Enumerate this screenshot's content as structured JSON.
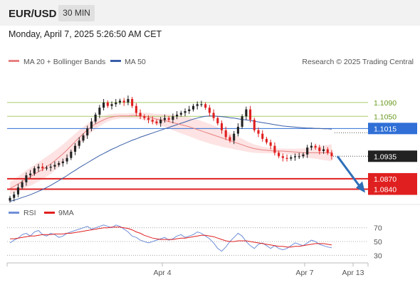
{
  "header": {
    "symbol": "EUR/USD",
    "timeframe": "30 MIN",
    "datetime": "Monday, April 7, 2025 5:26:50 AM CET"
  },
  "legend": {
    "ma20": "MA 20 + Bollinger Bands",
    "ma50": "MA 50",
    "credit": "Research © 2025 Trading Central",
    "rsi": "RSI",
    "rsi_ma": "9MA"
  },
  "colors": {
    "ma20": "#e88080",
    "ma50": "#3a5fa8",
    "band_fill": "#fcd9d9",
    "bull": "#222222",
    "bear": "#e02020",
    "resistance": "#a8cc6a",
    "pivot": "#2f6fd6",
    "support": "#e02020",
    "rsi": "#6f8fd8",
    "arrow": "#2f6fb8"
  },
  "chart_data": [
    {
      "type": "candlestick",
      "title": "EUR/USD 30 MIN",
      "x_ticks": [
        "Apr 4",
        "Apr 7",
        "Apr 13"
      ],
      "price_levels": [
        {
          "label": "1.1090",
          "value": 1.109,
          "kind": "resistance"
        },
        {
          "label": "1.1050",
          "value": 1.105,
          "kind": "resistance"
        },
        {
          "label": "1.1015",
          "value": 1.1015,
          "kind": "pivot"
        },
        {
          "label": "1.0935",
          "value": 1.0935,
          "kind": "last_price"
        },
        {
          "label": "1.0870",
          "value": 1.087,
          "kind": "support"
        },
        {
          "label": "1.0840",
          "value": 1.084,
          "kind": "support"
        }
      ],
      "ylim": [
        1.08,
        1.118
      ],
      "close_series": [
        1.0815,
        1.0825,
        1.0845,
        1.086,
        1.088,
        1.0885,
        1.09,
        1.0905,
        1.09,
        1.0902,
        1.0905,
        1.091,
        1.0915,
        1.092,
        1.093,
        1.0948,
        1.0965,
        1.098,
        1.0995,
        1.1015,
        1.1035,
        1.1055,
        1.1075,
        1.109,
        1.108,
        1.1085,
        1.109,
        1.1095,
        1.109,
        1.11,
        1.108,
        1.106,
        1.105,
        1.1045,
        1.104,
        1.1035,
        1.103,
        1.104,
        1.1045,
        1.104,
        1.105,
        1.1055,
        1.106,
        1.1065,
        1.107,
        1.108,
        1.1085,
        1.1085,
        1.1075,
        1.106,
        1.1045,
        1.103,
        1.101,
        1.099,
        1.098,
        1.1,
        1.102,
        1.105,
        1.107,
        1.104,
        1.101,
        1.1,
        1.0985,
        1.0975,
        1.0965,
        1.0945,
        1.0935,
        1.093,
        1.0928,
        1.0932,
        1.0935,
        1.0935,
        1.094,
        1.096,
        1.0965,
        1.096,
        1.095,
        1.0955,
        1.0945,
        1.0935
      ],
      "ma20_series": [
        1.0842,
        1.0848,
        1.0855,
        1.0862,
        1.087,
        1.0876,
        1.0883,
        1.089,
        1.0897,
        1.0905,
        1.0913,
        1.0922,
        1.0932,
        1.0942,
        1.0953,
        1.0965,
        1.0977,
        1.0989,
        1.1,
        1.1011,
        1.102,
        1.1028,
        1.1034,
        1.104,
        1.1045,
        1.1048,
        1.105,
        1.1051,
        1.1051,
        1.1051,
        1.1052,
        1.1052,
        1.1051,
        1.105,
        1.1048,
        1.1045,
        1.1042,
        1.104,
        1.1038,
        1.1035,
        1.1032,
        1.1029,
        1.1026,
        1.1023,
        1.102,
        1.1016,
        1.1012,
        1.1008,
        1.1004,
        1.1,
        1.0996,
        1.0992,
        1.0988,
        1.0984,
        1.098,
        1.0976,
        1.0972,
        1.0968,
        1.0964,
        1.096,
        1.0957,
        1.0955,
        1.0953,
        1.0952,
        1.0951,
        1.095,
        1.095,
        1.095,
        1.0949,
        1.0948,
        1.0947,
        1.0946,
        1.0945,
        1.0945,
        1.0945,
        1.0945,
        1.0945,
        1.0945,
        1.0945,
        1.0945
      ],
      "ma50_series": [
        1.0805,
        1.0808,
        1.0812,
        1.0816,
        1.082,
        1.0824,
        1.0829,
        1.0834,
        1.0839,
        1.0845,
        1.0851,
        1.0858,
        1.0865,
        1.0872,
        1.0879,
        1.0887,
        1.0894,
        1.0902,
        1.0909,
        1.0916,
        1.0923,
        1.093,
        1.0937,
        1.0943,
        1.0949,
        1.0955,
        1.096,
        1.0966,
        1.0971,
        1.0976,
        1.0981,
        1.0985,
        1.099,
        1.0994,
        1.0998,
        1.1002,
        1.1006,
        1.101,
        1.1014,
        1.1018,
        1.1022,
        1.1026,
        1.103,
        1.1034,
        1.1038,
        1.1042,
        1.1045,
        1.1048,
        1.105,
        1.1051,
        1.1051,
        1.105,
        1.1049,
        1.1048,
        1.1046,
        1.1045,
        1.1043,
        1.1041,
        1.104,
        1.1038,
        1.1036,
        1.1034,
        1.1032,
        1.103,
        1.1028,
        1.1026,
        1.1024,
        1.1022,
        1.1021,
        1.102,
        1.1019,
        1.1018,
        1.1017,
        1.1016,
        1.1016,
        1.1015,
        1.1015,
        1.1014,
        1.1014,
        1.1013
      ],
      "band_width": 0.0018,
      "forecast": {
        "from": 1.0935,
        "to": 1.084
      }
    },
    {
      "type": "line",
      "title": "RSI",
      "y_ticks": [
        70,
        50,
        30
      ],
      "ylim": [
        20,
        80
      ],
      "series": [
        {
          "name": "RSI",
          "values": [
            48,
            52,
            55,
            60,
            62,
            58,
            64,
            66,
            60,
            58,
            62,
            60,
            56,
            58,
            62,
            64,
            66,
            68,
            70,
            72,
            68,
            70,
            72,
            74,
            72,
            70,
            74,
            72,
            68,
            64,
            58,
            56,
            52,
            50,
            48,
            50,
            52,
            54,
            56,
            52,
            54,
            58,
            60,
            56,
            58,
            60,
            64,
            62,
            58,
            54,
            48,
            40,
            36,
            42,
            50,
            56,
            62,
            58,
            50,
            44,
            40,
            46,
            48,
            44,
            40,
            44,
            40,
            38,
            40,
            44,
            48,
            46,
            44,
            48,
            52,
            50,
            46,
            44,
            42,
            41
          ]
        },
        {
          "name": "9MA",
          "values": [
            54,
            54,
            55,
            56,
            57,
            58,
            58,
            59,
            60,
            60,
            60,
            61,
            61,
            61,
            62,
            62,
            63,
            64,
            65,
            66,
            67,
            68,
            69,
            70,
            70,
            71,
            71,
            71,
            70,
            69,
            67,
            64,
            62,
            59,
            57,
            55,
            54,
            53,
            53,
            53,
            53,
            54,
            55,
            55,
            56,
            57,
            58,
            59,
            59,
            58,
            57,
            55,
            53,
            51,
            50,
            50,
            51,
            51,
            51,
            50,
            49,
            48,
            47,
            46,
            45,
            44,
            43,
            43,
            42,
            42,
            43,
            43,
            44,
            45,
            46,
            47,
            47,
            47,
            46,
            45
          ]
        }
      ]
    }
  ]
}
